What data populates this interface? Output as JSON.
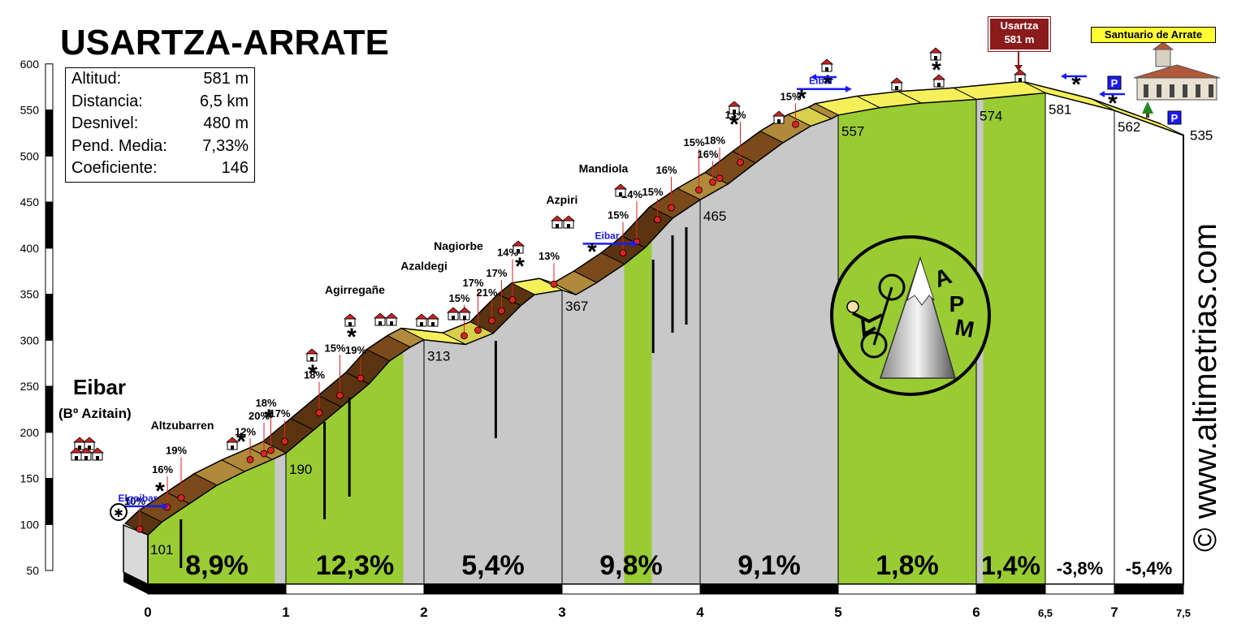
{
  "title": "USARTZA-ARRATE",
  "stats": [
    {
      "label": "Altitud:",
      "value": "581 m"
    },
    {
      "label": "Distancia:",
      "value": "6,5 km"
    },
    {
      "label": "Desnivel:",
      "value": "480 m"
    },
    {
      "label": "Pend. Media:",
      "value": "7,33%"
    },
    {
      "label": "Coeficiente:",
      "value": "146"
    }
  ],
  "start_name": "Eibar",
  "start_sub": "(Bº Azitain)",
  "summit_label": "Usartza",
  "summit_alt": "581 m",
  "sanctuary": "Santuario de Arrate",
  "watermark": "© www.altimetrias.com",
  "logo_text": "APM",
  "colors": {
    "green": "#99cc33",
    "grey": "#c8c8c8",
    "white_section": "#ffffff",
    "road_yellow": "#f5f05a",
    "road_brown": "#7a4a1a",
    "red_dot": "#dd2222",
    "sign_blue": "#1a1aff"
  },
  "chart_data": {
    "type": "area",
    "title": "USARTZA-ARRATE",
    "xlabel": "",
    "ylabel": "",
    "xlim": [
      0,
      7.5
    ],
    "ylim": [
      50,
      600
    ],
    "y_ticks": [
      50,
      100,
      150,
      200,
      250,
      300,
      350,
      400,
      450,
      500,
      550,
      600
    ],
    "x_ticks": [
      "0",
      "1",
      "2",
      "3",
      "4",
      "5",
      "6",
      "6,5",
      "7",
      "7,5"
    ],
    "x_tick_values": [
      0,
      1,
      2,
      3,
      4,
      5,
      6,
      6.5,
      7,
      7.5
    ],
    "profile": {
      "x": [
        0,
        0.1,
        0.3,
        0.5,
        0.7,
        0.9,
        1.0,
        1.2,
        1.4,
        1.6,
        1.75,
        1.9,
        2.0,
        2.3,
        2.5,
        2.7,
        2.8,
        3.0,
        3.1,
        3.25,
        3.45,
        3.6,
        3.8,
        4.0,
        4.2,
        4.4,
        4.6,
        4.8,
        4.95,
        5.0,
        5.3,
        5.6,
        6.0,
        6.5,
        7.0,
        7.5
      ],
      "y": [
        101,
        115,
        135,
        155,
        170,
        183,
        190,
        215,
        240,
        265,
        290,
        305,
        313,
        308,
        320,
        350,
        362,
        367,
        362,
        375,
        395,
        413,
        445,
        465,
        482,
        505,
        527,
        545,
        553,
        557,
        565,
        570,
        574,
        581,
        562,
        535
      ]
    },
    "point_labels": [
      {
        "x": 0,
        "y": 101,
        "label": "101"
      },
      {
        "x": 1,
        "y": 190,
        "label": "190"
      },
      {
        "x": 2,
        "y": 313,
        "label": "313"
      },
      {
        "x": 3,
        "y": 367,
        "label": "367"
      },
      {
        "x": 4,
        "y": 465,
        "label": "465"
      },
      {
        "x": 5,
        "y": 557,
        "label": "557"
      },
      {
        "x": 6,
        "y": 574,
        "label": "574"
      },
      {
        "x": 6.5,
        "y": 581,
        "label": "581"
      },
      {
        "x": 7,
        "y": 562,
        "label": "562"
      },
      {
        "x": 7.5,
        "y": 535,
        "label": "535"
      }
    ],
    "segments": [
      {
        "from": 0,
        "to": 1,
        "gradient": "8,9%"
      },
      {
        "from": 1,
        "to": 2,
        "gradient": "12,3%"
      },
      {
        "from": 2,
        "to": 3,
        "gradient": "5,4%"
      },
      {
        "from": 3,
        "to": 4,
        "gradient": "9,8%"
      },
      {
        "from": 4,
        "to": 5,
        "gradient": "9,1%"
      },
      {
        "from": 5,
        "to": 6,
        "gradient": "1,8%"
      },
      {
        "from": 6,
        "to": 6.5,
        "gradient": "1,4%"
      },
      {
        "from": 6.5,
        "to": 7,
        "gradient": "-3,8%"
      },
      {
        "from": 7,
        "to": 7.5,
        "gradient": "-5,4%"
      }
    ],
    "green_bands": [
      [
        0,
        0.92
      ],
      [
        1,
        1.85
      ],
      [
        3.45,
        3.65
      ],
      [
        5,
        6
      ],
      [
        6.05,
        6.5
      ]
    ],
    "grade_marks": [
      {
        "x": 0.0,
        "y": 115,
        "label": "10%"
      },
      {
        "x": 0.2,
        "y": 130,
        "label": "16%"
      },
      {
        "x": 0.3,
        "y": 136,
        "label": "19%"
      },
      {
        "x": 0.8,
        "y": 174,
        "label": "12%"
      },
      {
        "x": 0.9,
        "y": 180,
        "label": "20%"
      },
      {
        "x": 0.95,
        "y": 188,
        "label": "18%"
      },
      {
        "x": 1.05,
        "y": 196,
        "label": "17%"
      },
      {
        "x": 1.3,
        "y": 228,
        "label": "18%"
      },
      {
        "x": 1.45,
        "y": 245,
        "label": "15%"
      },
      {
        "x": 1.6,
        "y": 262,
        "label": "19%"
      },
      {
        "x": 2.35,
        "y": 322,
        "label": "15%"
      },
      {
        "x": 2.45,
        "y": 333,
        "label": "17%"
      },
      {
        "x": 2.55,
        "y": 345,
        "label": "21%"
      },
      {
        "x": 2.62,
        "y": 355,
        "label": "17%"
      },
      {
        "x": 2.7,
        "y": 362,
        "label": "14%"
      },
      {
        "x": 3.0,
        "y": 374,
        "label": "13%"
      },
      {
        "x": 3.5,
        "y": 402,
        "label": "15%"
      },
      {
        "x": 3.6,
        "y": 412,
        "label": "14%"
      },
      {
        "x": 3.75,
        "y": 430,
        "label": "15%"
      },
      {
        "x": 3.85,
        "y": 440,
        "label": "16%"
      },
      {
        "x": 4.05,
        "y": 470,
        "label": "15%"
      },
      {
        "x": 4.15,
        "y": 478,
        "label": "16%"
      },
      {
        "x": 4.2,
        "y": 484,
        "label": "18%"
      },
      {
        "x": 4.35,
        "y": 500,
        "label": "13%"
      },
      {
        "x": 4.75,
        "y": 545,
        "label": "15%"
      }
    ],
    "places": [
      {
        "x": 0.25,
        "y": 205,
        "label": "Altzubarren"
      },
      {
        "x": 1.5,
        "y": 352,
        "label": "Agirregañe"
      },
      {
        "x": 2.0,
        "y": 378,
        "label": "Azaldegi"
      },
      {
        "x": 2.25,
        "y": 400,
        "label": "Nagiorbe"
      },
      {
        "x": 3.0,
        "y": 450,
        "label": "Azpiri"
      },
      {
        "x": 3.3,
        "y": 484,
        "label": "Mandiola"
      }
    ],
    "direction_signs": [
      {
        "x": -0.25,
        "y": 125,
        "label": "Elgoibar"
      },
      {
        "x": 3.15,
        "y": 410,
        "label": "Eibar"
      },
      {
        "x": 4.7,
        "y": 578,
        "label": "Eibar"
      }
    ]
  }
}
